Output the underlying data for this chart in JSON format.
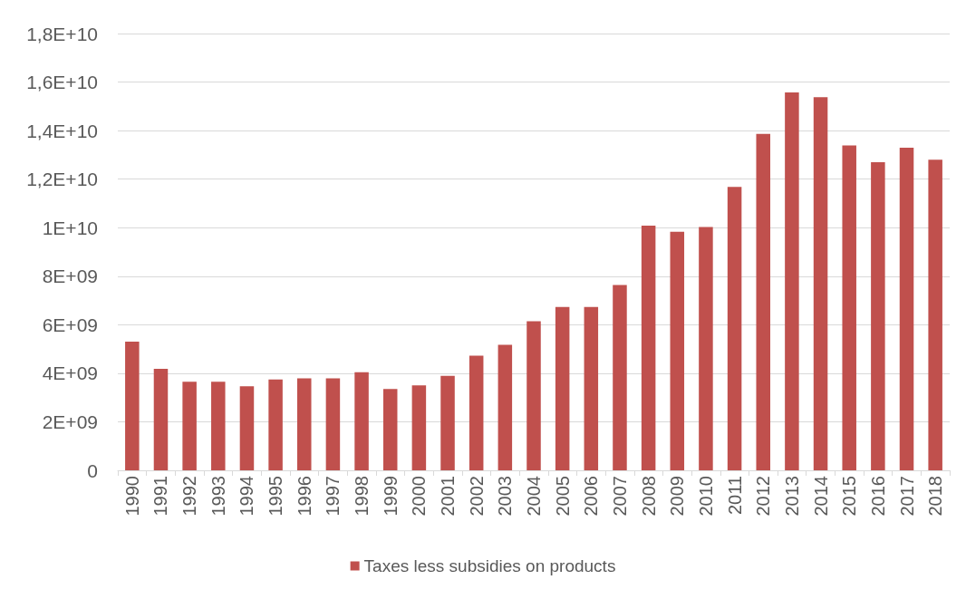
{
  "chart_data": {
    "type": "bar",
    "categories": [
      "1990",
      "1991",
      "1992",
      "1993",
      "1994",
      "1995",
      "1996",
      "1997",
      "1998",
      "1999",
      "2000",
      "2001",
      "2002",
      "2003",
      "2004",
      "2005",
      "2006",
      "2007",
      "2008",
      "2009",
      "2010",
      "2011",
      "2012",
      "2013",
      "2014",
      "2015",
      "2016",
      "2017",
      "2018"
    ],
    "series": [
      {
        "name": "Taxes less subsidies on products",
        "color": "#c0504d",
        "values": [
          5300000000,
          4180000000,
          3650000000,
          3650000000,
          3460000000,
          3740000000,
          3790000000,
          3790000000,
          4040000000,
          3350000000,
          3500000000,
          3890000000,
          4720000000,
          5170000000,
          6140000000,
          6730000000,
          6730000000,
          7640000000,
          10080000000,
          9830000000,
          10030000000,
          11680000000,
          13860000000,
          15570000000,
          15380000000,
          13390000000,
          12700000000,
          13290000000,
          12800000000
        ]
      }
    ],
    "ylim": [
      0,
      18000000000
    ],
    "yticks": [
      0,
      {
        "value": 2000000000,
        "label": "2E+09"
      },
      {
        "value": 4000000000,
        "label": "4E+09"
      },
      {
        "value": 6000000000,
        "label": "6E+09"
      },
      {
        "value": 8000000000,
        "label": "8E+09"
      },
      {
        "value": 10000000000,
        "label": "1E+10"
      },
      {
        "value": 12000000000,
        "label": "1,2E+10"
      },
      {
        "value": 14000000000,
        "label": "1,4E+10"
      },
      {
        "value": 16000000000,
        "label": "1,6E+10"
      },
      {
        "value": 18000000000,
        "label": "1,8E+10"
      }
    ],
    "grid": "y",
    "legend": "bottom"
  }
}
